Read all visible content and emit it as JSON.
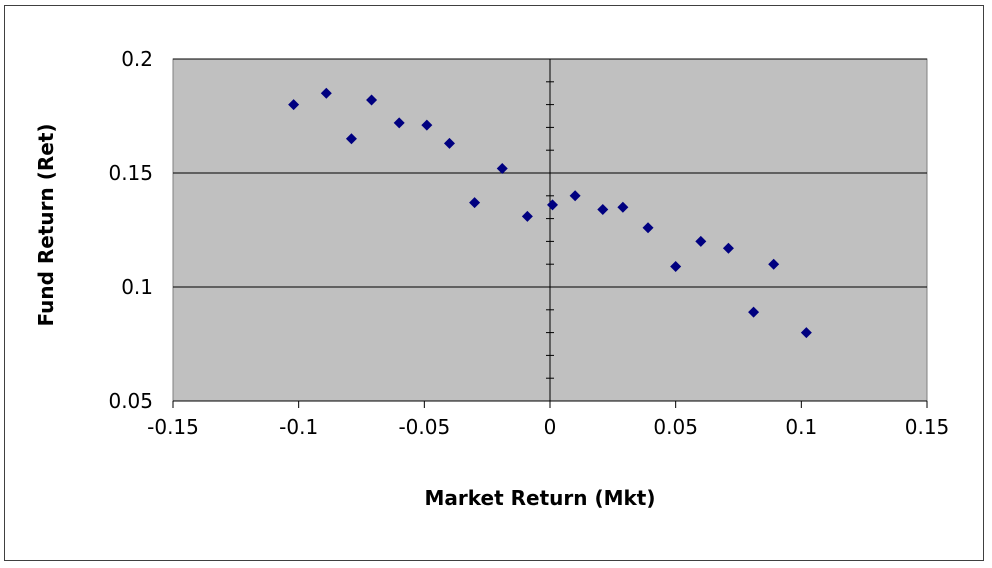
{
  "chart_data": {
    "type": "scatter",
    "title": "",
    "xlabel": "Market Return (Mkt)",
    "ylabel": "Fund Return (Ret)",
    "xlim": [
      -0.15,
      0.15
    ],
    "ylim": [
      0.05,
      0.2
    ],
    "xticks": [
      "-0.15",
      "-0.1",
      "-0.05",
      "0",
      "0.05",
      "0.1",
      "0.15"
    ],
    "xtick_values": [
      -0.15,
      -0.1,
      -0.05,
      0,
      0.05,
      0.1,
      0.15
    ],
    "yticks": [
      "0.05",
      "0.1",
      "0.15",
      "0.2"
    ],
    "ytick_values": [
      0.05,
      0.1,
      0.15,
      0.2
    ],
    "grid": "horizontal major gridlines",
    "legend": "none",
    "colors": {
      "plot_area": "#c0c0c0",
      "marker": "#000080",
      "gridline": "#000000"
    },
    "series": [
      {
        "marker": "diamond",
        "x": [
          -0.102,
          -0.089,
          -0.079,
          -0.071,
          -0.06,
          -0.049,
          -0.04,
          -0.03,
          -0.019,
          -0.009,
          0.001,
          0.01,
          0.021,
          0.029,
          0.039,
          0.05,
          0.06,
          0.071,
          0.081,
          0.089,
          0.102
        ],
        "y": [
          0.18,
          0.185,
          0.165,
          0.182,
          0.172,
          0.171,
          0.163,
          0.137,
          0.152,
          0.131,
          0.136,
          0.14,
          0.134,
          0.135,
          0.126,
          0.109,
          0.12,
          0.117,
          0.089,
          0.11,
          0.08
        ]
      }
    ]
  }
}
